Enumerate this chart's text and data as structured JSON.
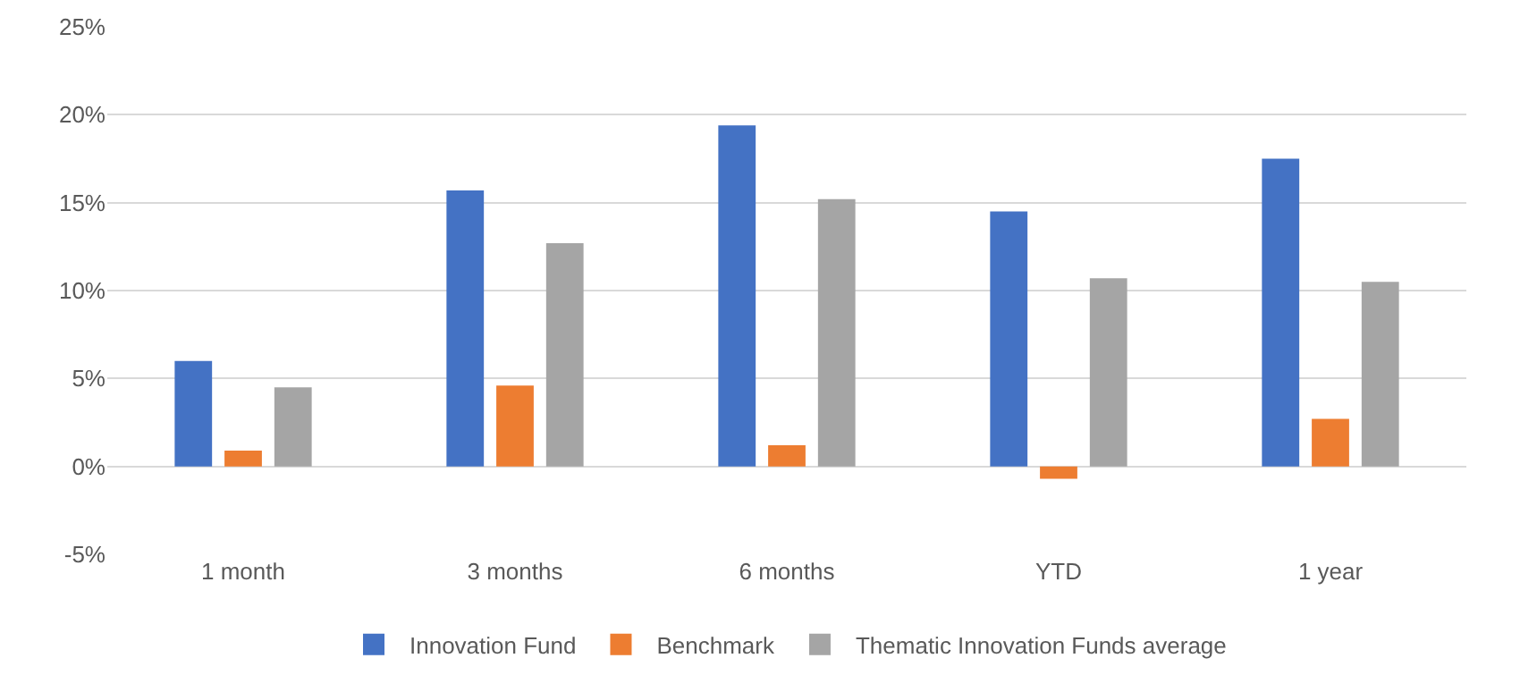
{
  "chart_data": {
    "type": "bar",
    "categories": [
      "1 month",
      "3 months",
      "6 months",
      "YTD",
      "1 year"
    ],
    "series": [
      {
        "name": "Innovation Fund",
        "color": "#4472c4",
        "values": [
          6.0,
          15.7,
          19.4,
          14.5,
          17.5
        ]
      },
      {
        "name": "Benchmark",
        "color": "#ed7d31",
        "values": [
          0.9,
          4.6,
          1.2,
          -0.7,
          2.7
        ]
      },
      {
        "name": "Thematic Innovation Funds average",
        "color": "#a5a5a5",
        "values": [
          4.5,
          12.7,
          15.2,
          10.7,
          10.5
        ]
      }
    ],
    "ylim": [
      -5,
      25
    ],
    "yticks": [
      {
        "value": -5,
        "label": "-5%"
      },
      {
        "value": 0,
        "label": "0%"
      },
      {
        "value": 5,
        "label": "5%"
      },
      {
        "value": 10,
        "label": "10%"
      },
      {
        "value": 15,
        "label": "15%"
      },
      {
        "value": 20,
        "label": "20%"
      },
      {
        "value": 25,
        "label": "25%"
      }
    ],
    "grid": "y",
    "legend": "bottom"
  }
}
